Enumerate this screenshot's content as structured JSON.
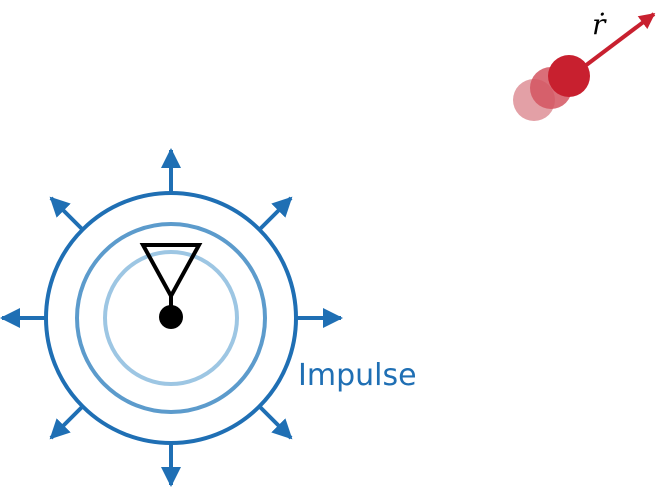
{
  "labels": {
    "impulse": "Impulse",
    "velocity": "ṙ"
  },
  "colors": {
    "pulse_outer": "#1f6fb4",
    "pulse_mid": "#5c9bcc",
    "pulse_inner": "#9dc6e3",
    "antenna": "#000000",
    "target": "#c8202f",
    "target_trail_1": "#d45560",
    "target_trail_2": "#e3a0a6",
    "velocity_arrow": "#c8202f"
  },
  "icons": {
    "antenna": "antenna-icon",
    "target": "target-dot"
  }
}
